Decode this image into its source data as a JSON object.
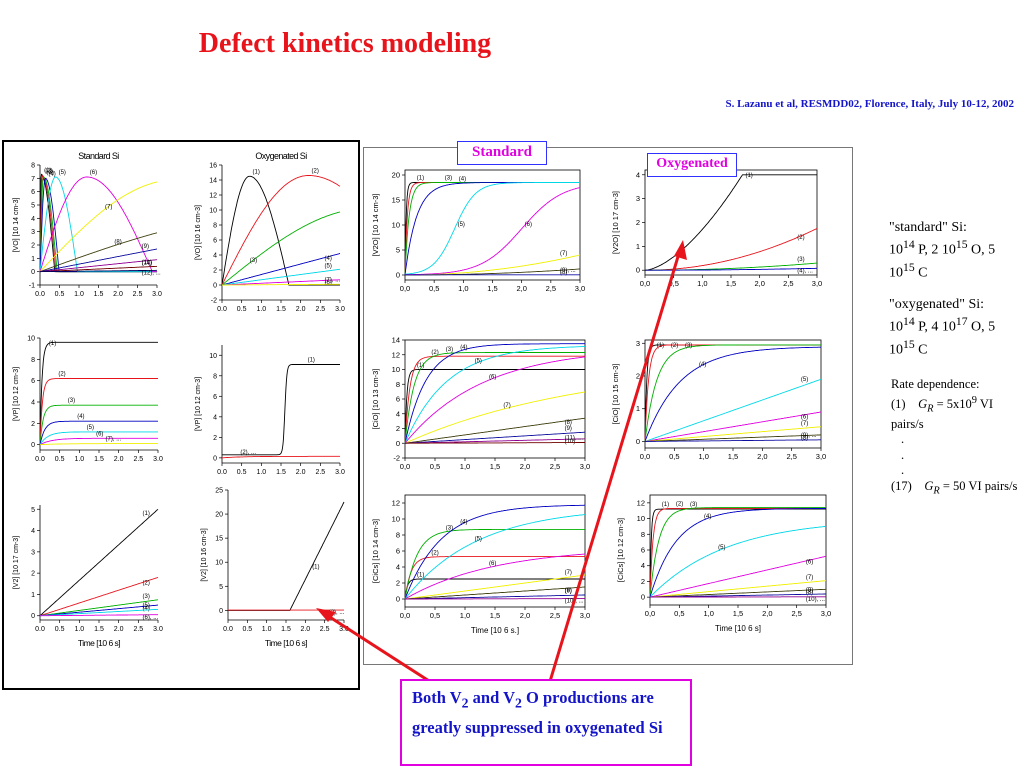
{
  "title": "Defect kinetics modeling",
  "citation": "S. Lazanu et al, RESMDD02, Florence, Italy, July 10-12, 2002",
  "tags": {
    "standard": "Standard",
    "oxygenated": "Oxygenated"
  },
  "description": {
    "standard": {
      "label": "\"standard\" Si:",
      "p_exp": "14",
      "p_mid": " P, 2 10",
      "o_exp": "15",
      "o_mid": " O, 5 10",
      "c_exp": "15",
      "c_end": " C"
    },
    "oxygenated": {
      "label": "\"oxygenated\" Si:",
      "p_exp": "14",
      "p_mid": " P, 4 10",
      "o_exp": "17",
      "o_mid": " O, 5 10",
      "c_exp": "15",
      "c_end": " C"
    },
    "rate": {
      "heading": "Rate dependence:",
      "line1_idx": "(1)",
      "line1_val": " = 5x10",
      "line1_exp": "9",
      "line1_end": " VI pairs/s",
      "dots": [
        ".",
        ".",
        "."
      ],
      "line2_idx": "(17)",
      "line2_val": " = 50 VI pairs/s",
      "g_symbol": "G",
      "g_sub": "R"
    }
  },
  "note": {
    "text1": "Both V",
    "sub1": "2",
    "text2": " and V",
    "sub2": "2",
    "text3": " O productions are greatly suppressed in oxygenated Si"
  },
  "chart_data": [
    {
      "id": "l-vo-std",
      "title": "Standard Si",
      "type": "line",
      "ylabel": "[VO] [10 14 cm-3]",
      "xlabel": "",
      "xlim": [
        0,
        3
      ],
      "ylim": [
        -1,
        8
      ],
      "xticks": [
        "0.0",
        "0.5",
        "1.0",
        "1.5",
        "2.0",
        "2.5",
        "3.0"
      ],
      "yticks": [
        "-1",
        "0",
        "1",
        "2",
        "3",
        "4",
        "5",
        "6",
        "7",
        "8"
      ],
      "series": [
        {
          "name": "(1)",
          "k": "spike",
          "peak": 7.3,
          "tp": 0.03
        },
        {
          "name": "(2)",
          "k": "spike",
          "peak": 7.2,
          "tp": 0.06
        },
        {
          "name": "(3)",
          "k": "spike",
          "peak": 7.1,
          "tp": 0.09
        },
        {
          "name": "(4)",
          "k": "spike",
          "peak": 7.0,
          "tp": 0.14
        },
        {
          "name": "(5)",
          "k": "spike",
          "peak": 7.1,
          "tp": 0.4
        },
        {
          "name": "(6)",
          "k": "spike",
          "peak": 7.1,
          "tp": 1.2
        },
        {
          "name": "(7)",
          "k": "rise",
          "peak": 6.9,
          "tp": 3.5
        },
        {
          "name": "(8)",
          "k": "rise",
          "peak": 4.4,
          "tp": 6.5
        },
        {
          "name": "(9)",
          "k": "lin",
          "peak": 1.7
        },
        {
          "name": "(10)",
          "k": "lin",
          "peak": 0.9
        },
        {
          "name": "(11)",
          "k": "lin",
          "peak": 0.4
        },
        {
          "name": "(12), ...",
          "k": "lin",
          "peak": 0.1
        }
      ]
    },
    {
      "id": "l-vo-oxy",
      "title": "Oxygenated Si",
      "type": "line",
      "ylabel": "[VO] [10 16 cm-3]",
      "xlabel": "",
      "xlim": [
        0,
        3
      ],
      "ylim": [
        -2,
        16
      ],
      "xticks": [
        "0.0",
        "0.5",
        "1.0",
        "1.5",
        "2.0",
        "2.5",
        "3.0"
      ],
      "yticks": [
        "-2",
        "0",
        "2",
        "4",
        "6",
        "8",
        "10",
        "12",
        "14",
        "16"
      ],
      "series": [
        {
          "name": "(1)",
          "k": "spike",
          "peak": 14.5,
          "tp": 0.7,
          "tz": 1.7
        },
        {
          "name": "(2)",
          "k": "spike",
          "peak": 14.6,
          "tp": 2.2,
          "tz": 5
        },
        {
          "name": "(3)",
          "k": "rise",
          "peak": 10.3,
          "tp": 3.8
        },
        {
          "name": "(4)",
          "k": "lin",
          "peak": 4.2
        },
        {
          "name": "(5)",
          "k": "lin",
          "peak": 2.1
        },
        {
          "name": "(6)",
          "k": "lin",
          "peak": 0.7
        },
        {
          "name": "(7), ...",
          "k": "lin",
          "peak": 0.1
        }
      ]
    },
    {
      "id": "l-vp-std",
      "title": "",
      "type": "line",
      "ylabel": "[VP] [10 12 cm-3]",
      "xlabel": "",
      "xlim": [
        0,
        3
      ],
      "ylim": [
        -0.5,
        10
      ],
      "xticks": [
        "0.0",
        "0.5",
        "1.0",
        "1.5",
        "2.0",
        "2.5",
        "3.0"
      ],
      "yticks": [
        "0",
        "2",
        "4",
        "6",
        "8",
        "10"
      ],
      "series": [
        {
          "name": "(1)",
          "k": "sat",
          "peak": 9.6,
          "tp": 0.05
        },
        {
          "name": "(2)",
          "k": "sat",
          "peak": 6.2,
          "tp": 0.06
        },
        {
          "name": "(3)",
          "k": "sat",
          "peak": 3.7,
          "tp": 0.08
        },
        {
          "name": "(4)",
          "k": "sat",
          "peak": 2.2,
          "tp": 0.12
        },
        {
          "name": "(5)",
          "k": "sat",
          "peak": 1.2,
          "tp": 0.2
        },
        {
          "name": "(6)",
          "k": "sat",
          "peak": 0.6,
          "tp": 0.3
        },
        {
          "name": "(7), ...",
          "k": "sat",
          "peak": 0.1,
          "tp": 0.5
        }
      ]
    },
    {
      "id": "l-vp-oxy",
      "title": "",
      "type": "line",
      "ylabel": "[VP] [10 12 cm-3]",
      "xlabel": "",
      "xlim": [
        0,
        3
      ],
      "ylim": [
        -0.5,
        11
      ],
      "xticks": [
        "0.0",
        "0.5",
        "1.0",
        "1.5",
        "2.0",
        "2.5",
        "3.0"
      ],
      "yticks": [
        "0",
        "2",
        "4",
        "6",
        "8",
        "10"
      ],
      "series": [
        {
          "name": "(1)",
          "k": "step",
          "peak": 9.1,
          "tp": 1.6,
          "base": 0.3
        },
        {
          "name": "(2), ...",
          "k": "sat",
          "peak": 0.15,
          "tp": 0.5
        }
      ]
    },
    {
      "id": "l-v2-std",
      "title": "",
      "type": "line",
      "ylabel": "[V2] [10 17 cm-3]",
      "xlabel": "Time [10 6 s]",
      "xlim": [
        0,
        3
      ],
      "ylim": [
        -0.2,
        5.2
      ],
      "xticks": [
        "0.0",
        "0.5",
        "1.0",
        "1.5",
        "2.0",
        "2.5",
        "3.0"
      ],
      "yticks": [
        "0",
        "1",
        "2",
        "3",
        "4",
        "5"
      ],
      "series": [
        {
          "name": "(1)",
          "k": "lin",
          "peak": 5.0
        },
        {
          "name": "(2)",
          "k": "lin",
          "peak": 1.8
        },
        {
          "name": "(3)",
          "k": "lin",
          "peak": 0.75
        },
        {
          "name": "(4)",
          "k": "lin",
          "peak": 0.5
        },
        {
          "name": "(5)",
          "k": "lin",
          "peak": 0.3
        },
        {
          "name": "(6), ...",
          "k": "lin",
          "peak": 0.05
        }
      ]
    },
    {
      "id": "l-v2-oxy",
      "title": "",
      "type": "line",
      "ylabel": "[V2] [10 16 cm-3]",
      "xlabel": "Time [10 6 s]",
      "xlim": [
        0,
        3
      ],
      "ylim": [
        -2,
        25
      ],
      "xticks": [
        "0.0",
        "0.5",
        "1.0",
        "1.5",
        "2.0",
        "2.5",
        "3.0"
      ],
      "yticks": [
        "0",
        "5",
        "10",
        "15",
        "20",
        "25"
      ],
      "series": [
        {
          "name": "(1)",
          "k": "ramp",
          "peak": 22.5,
          "tp": 1.6
        },
        {
          "name": "(2), ...",
          "k": "flat",
          "peak": 0.05
        }
      ]
    },
    {
      "id": "s-v2o",
      "title": "",
      "type": "line",
      "ylabel": "[V2O] [10 14 cm-3]",
      "xlabel": "",
      "xlim": [
        0,
        3
      ],
      "ylim": [
        -1,
        21
      ],
      "xticks": [
        "0,0",
        "0,5",
        "1,0",
        "1,5",
        "2,0",
        "2,5",
        "3,0"
      ],
      "yticks": [
        "0",
        "5",
        "10",
        "15",
        "20"
      ],
      "series": [
        {
          "name": "(1)",
          "k": "sat",
          "peak": 18.5,
          "tp": 0.02
        },
        {
          "name": "",
          "k": "sat",
          "peak": 18.5,
          "tp": 0.04
        },
        {
          "name": "(3)",
          "k": "sat",
          "peak": 18.5,
          "tp": 0.07
        },
        {
          "name": "(4)",
          "k": "sat",
          "peak": 18.5,
          "tp": 0.2
        },
        {
          "name": "(5)",
          "k": "sig",
          "peak": 18.5,
          "tp": 0.85,
          "w": 0.18
        },
        {
          "name": "(6)",
          "k": "sig",
          "peak": 18.5,
          "tp": 2.0,
          "w": 0.35
        },
        {
          "name": "(7)",
          "k": "pow",
          "peak": 4.0
        },
        {
          "name": "(8)",
          "k": "pow",
          "peak": 1.2
        },
        {
          "name": "(9), ...",
          "k": "flat",
          "peak": 0.05
        }
      ]
    },
    {
      "id": "s-v2o-oxy",
      "title": "",
      "type": "line",
      "ylabel": "[V2O] [10 17 cm-3]",
      "xlabel": "",
      "xlim": [
        0,
        3
      ],
      "ylim": [
        -0.2,
        4.2
      ],
      "xticks": [
        "0,0",
        "0,5",
        "1,0",
        "1,5",
        "2,0",
        "2,5",
        "3,0"
      ],
      "yticks": [
        "0",
        "1",
        "2",
        "3",
        "4"
      ],
      "series": [
        {
          "name": "(1)",
          "k": "sigcap",
          "peak": 4.0,
          "tp": 1.7
        },
        {
          "name": "(2)",
          "k": "pow",
          "peak": 1.75
        },
        {
          "name": "(3)",
          "k": "pow",
          "peak": 0.3
        },
        {
          "name": "(4), ...",
          "k": "pow",
          "peak": 0.08
        }
      ]
    },
    {
      "id": "s-cio",
      "title": "",
      "type": "line",
      "ylabel": "[CiO] [10 13 cm-3]",
      "xlabel": "",
      "xlim": [
        0,
        3
      ],
      "ylim": [
        -2,
        14
      ],
      "xticks": [
        "0,0",
        "0,5",
        "1,0",
        "1,5",
        "2,0",
        "2,5",
        "3,0"
      ],
      "yticks": [
        "-2",
        "0",
        "2",
        "4",
        "6",
        "8",
        "10",
        "12",
        "14"
      ],
      "series": [
        {
          "name": "(1)",
          "k": "sat",
          "peak": 10.0,
          "tp": 0.03
        },
        {
          "name": "(2)",
          "k": "sat",
          "peak": 11.8,
          "tp": 0.08
        },
        {
          "name": "(3)",
          "k": "sat",
          "peak": 12.3,
          "tp": 0.15
        },
        {
          "name": "(4)",
          "k": "sat",
          "peak": 13.5,
          "tp": 0.35
        },
        {
          "name": "(5)",
          "k": "sat",
          "peak": 13.3,
          "tp": 0.7
        },
        {
          "name": "(6)",
          "k": "sat",
          "peak": 13.0,
          "tp": 1.3
        },
        {
          "name": "(7)",
          "k": "sat",
          "peak": 11.0,
          "tp": 3.0
        },
        {
          "name": "(8)",
          "k": "lin",
          "peak": 3.4
        },
        {
          "name": "(9)",
          "k": "lin",
          "peak": 1.5
        },
        {
          "name": "(10)",
          "k": "lin",
          "peak": 0.6
        },
        {
          "name": "(11), ...",
          "k": "lin",
          "peak": 0.1
        }
      ]
    },
    {
      "id": "s-cio-oxy",
      "title": "",
      "type": "line",
      "ylabel": "[CiO] [10 15 cm-3]",
      "xlabel": "",
      "xlim": [
        0,
        3
      ],
      "ylim": [
        -0.2,
        3.1
      ],
      "xticks": [
        "0,0",
        "0,5",
        "1,0",
        "1,5",
        "2,0",
        "2,5",
        "3,0"
      ],
      "yticks": [
        "0",
        "1",
        "2",
        "3"
      ],
      "series": [
        {
          "name": "(1)",
          "k": "sat",
          "peak": 2.95,
          "tp": 0.03
        },
        {
          "name": "(2)",
          "k": "sat",
          "peak": 2.95,
          "tp": 0.06
        },
        {
          "name": "(3)",
          "k": "sat",
          "peak": 2.95,
          "tp": 0.2
        },
        {
          "name": "(4)",
          "k": "sat",
          "peak": 2.9,
          "tp": 0.6
        },
        {
          "name": "(5)",
          "k": "lin",
          "peak": 1.9
        },
        {
          "name": "(6)",
          "k": "lin",
          "peak": 0.9
        },
        {
          "name": "(7)",
          "k": "lin",
          "peak": 0.45
        },
        {
          "name": "(8)",
          "k": "lin",
          "peak": 0.2
        },
        {
          "name": "(9), ...",
          "k": "lin",
          "peak": 0.05
        }
      ]
    },
    {
      "id": "s-cc",
      "title": "",
      "type": "line",
      "ylabel": "[CiCs] [10 14 cm-3]",
      "xlabel": "Time [10 6 s.]",
      "xlim": [
        0,
        3
      ],
      "ylim": [
        -1,
        13
      ],
      "xticks": [
        "0,0",
        "0,5",
        "1,0",
        "1,5",
        "2,0",
        "2,5",
        "3,0"
      ],
      "yticks": [
        "0",
        "2",
        "4",
        "6",
        "8",
        "10",
        "12"
      ],
      "series": [
        {
          "name": "(1)",
          "k": "sat",
          "peak": 2.5,
          "tp": 0.04
        },
        {
          "name": "(2)",
          "k": "sat",
          "peak": 5.3,
          "tp": 0.1
        },
        {
          "name": "(3)",
          "k": "sat",
          "peak": 8.7,
          "tp": 0.2
        },
        {
          "name": "(4)",
          "k": "sat",
          "peak": 11.8,
          "tp": 0.6
        },
        {
          "name": "(5)",
          "k": "sat",
          "peak": 11.5,
          "tp": 1.2
        },
        {
          "name": "(6)",
          "k": "sat",
          "peak": 6.5,
          "tp": 1.5
        },
        {
          "name": "(7)",
          "k": "lin",
          "peak": 3.0
        },
        {
          "name": "(8)",
          "k": "lin",
          "peak": 1.5
        },
        {
          "name": "(9)",
          "k": "lin",
          "peak": 0.5
        },
        {
          "name": "(10), ...",
          "k": "lin",
          "peak": 0.05
        }
      ]
    },
    {
      "id": "s-cc-oxy",
      "title": "",
      "type": "line",
      "ylabel": "[CiCs] [10 12 cm-3]",
      "xlabel": "Time [10 6 s]",
      "xlim": [
        0,
        3
      ],
      "ylim": [
        -1,
        13
      ],
      "xticks": [
        "0,0",
        "0,5",
        "1,0",
        "1,5",
        "2,0",
        "2,5",
        "3,0"
      ],
      "yticks": [
        "0",
        "2",
        "4",
        "6",
        "8",
        "10",
        "12"
      ],
      "series": [
        {
          "name": "(1)",
          "k": "sat",
          "peak": 11.2,
          "tp": 0.02
        },
        {
          "name": "(2)",
          "k": "sat",
          "peak": 11.3,
          "tp": 0.05
        },
        {
          "name": "(3)",
          "k": "sat",
          "peak": 11.4,
          "tp": 0.15
        },
        {
          "name": "(4)",
          "k": "sat",
          "peak": 11.3,
          "tp": 0.45
        },
        {
          "name": "(5)",
          "k": "sat",
          "peak": 10.0,
          "tp": 1.3
        },
        {
          "name": "(6)",
          "k": "lin",
          "peak": 5.2
        },
        {
          "name": "(7)",
          "k": "lin",
          "peak": 2.1
        },
        {
          "name": "(8)",
          "k": "lin",
          "peak": 1.0
        },
        {
          "name": "(9)",
          "k": "lin",
          "peak": 0.4
        },
        {
          "name": "(10), ...",
          "k": "lin",
          "peak": 0.05
        }
      ]
    }
  ],
  "colors": [
    "#000000",
    "#e8141c",
    "#00b000",
    "#0000c0",
    "#00d8e8",
    "#e000e0",
    "#f0f000",
    "#404010",
    "#1010a0",
    "#900090",
    "#700000",
    "#000060"
  ]
}
